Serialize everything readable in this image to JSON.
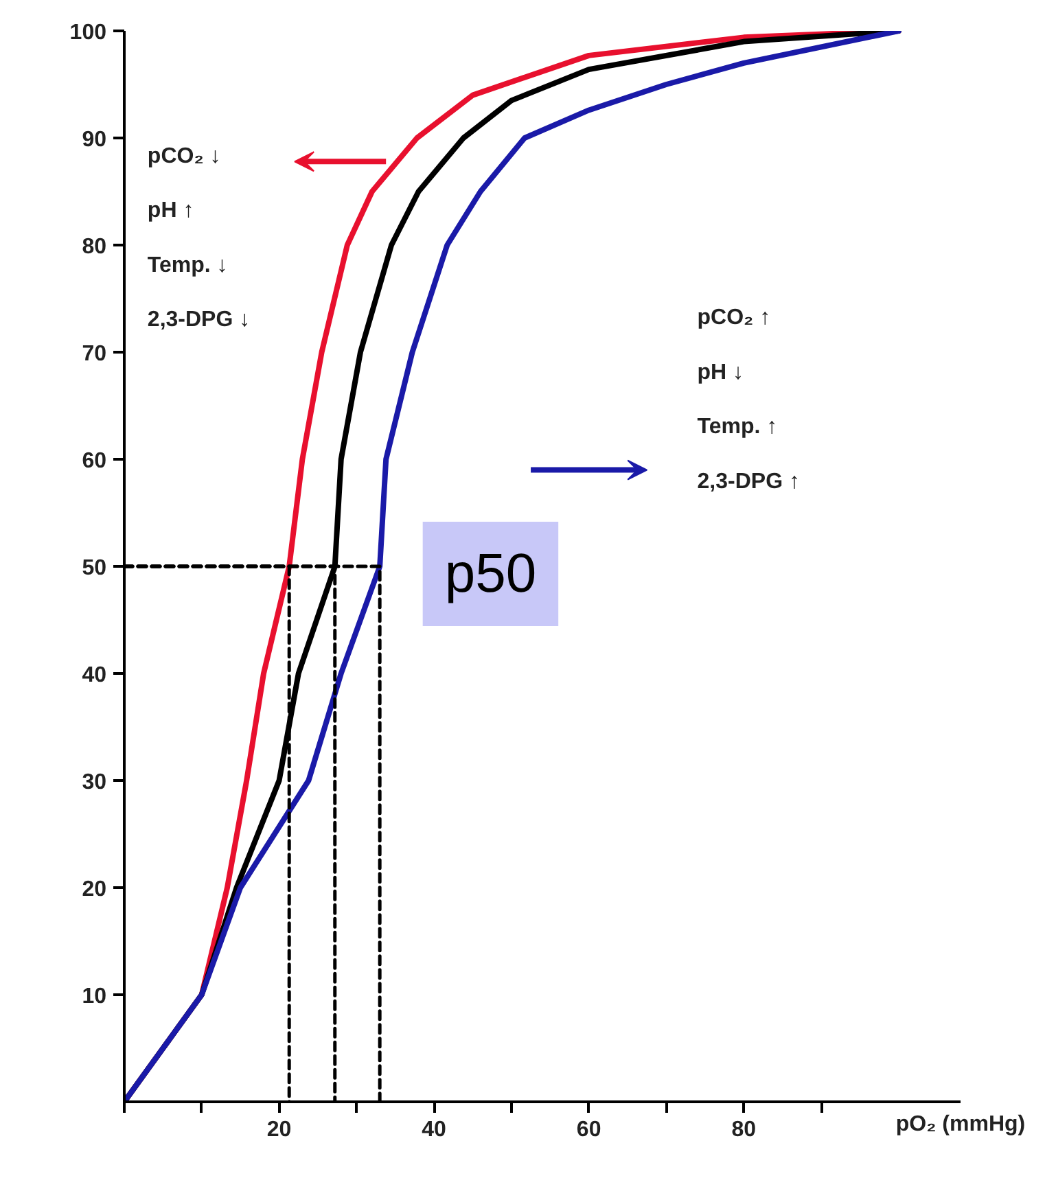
{
  "chart_data": {
    "type": "line",
    "xlabel": "pO₂ (mmHg)",
    "xlim": [
      0,
      108
    ],
    "ylim": [
      0,
      100
    ],
    "xticks": [
      {
        "value": 0,
        "label": null
      },
      {
        "value": 10,
        "label": null
      },
      20,
      {
        "value": 30,
        "label": null
      },
      40,
      {
        "value": 50,
        "label": null
      },
      60,
      {
        "value": 70,
        "label": null
      },
      80,
      {
        "value": 90,
        "label": null
      }
    ],
    "yticks": [
      10,
      20,
      30,
      40,
      50,
      60,
      70,
      80,
      90,
      100
    ],
    "grid": false,
    "marker": "none",
    "series": [
      {
        "color": "#e8102e",
        "x": [
          0,
          5,
          10,
          13.3,
          15.8,
          18,
          21.3,
          23,
          25.5,
          28.8,
          32,
          37.8,
          45,
          60,
          80,
          100
        ],
        "values": [
          0,
          5,
          10,
          20,
          30,
          40,
          50,
          60,
          70,
          80,
          85,
          90,
          94,
          97.7,
          99.4,
          100
        ]
      },
      {
        "color": "#000000",
        "x": [
          0,
          5,
          10,
          14.5,
          20,
          22.5,
          27.2,
          28,
          30.5,
          34.5,
          38,
          43.8,
          50,
          60,
          80,
          100
        ],
        "values": [
          0,
          5,
          10,
          20,
          30,
          40,
          50,
          60,
          70,
          80,
          85,
          90,
          93.5,
          96.4,
          99,
          100
        ]
      },
      {
        "color": "#1a1aa8",
        "x": [
          0,
          5,
          10,
          15,
          23.8,
          28,
          33,
          33.8,
          37.2,
          41.7,
          46,
          51.7,
          60,
          70,
          80,
          100
        ],
        "values": [
          0,
          5,
          10,
          20,
          30,
          40,
          50,
          60,
          70,
          80,
          85,
          90,
          92.6,
          95,
          97,
          100
        ]
      },
      {
        "color": "#000000",
        "line_style": "dashed",
        "x": [
          0,
          21.3,
          21.3
        ],
        "values": [
          50,
          50,
          0
        ]
      },
      {
        "color": "#000000",
        "line_style": "dashed",
        "x": [
          0,
          27.2,
          27.2
        ],
        "values": [
          50,
          50,
          0
        ]
      },
      {
        "color": "#000000",
        "line_style": "dashed",
        "x": [
          0,
          33,
          33
        ],
        "values": [
          50,
          50,
          0
        ]
      }
    ],
    "annotations": [
      "pCO₂ ↓",
      "pH ↑",
      "Temp. ↓",
      "2,3-DPG ↓",
      "pCO₂ ↑",
      "pH ↓",
      "Temp. ↑",
      "2,3-DPG ↑",
      "p50"
    ]
  }
}
